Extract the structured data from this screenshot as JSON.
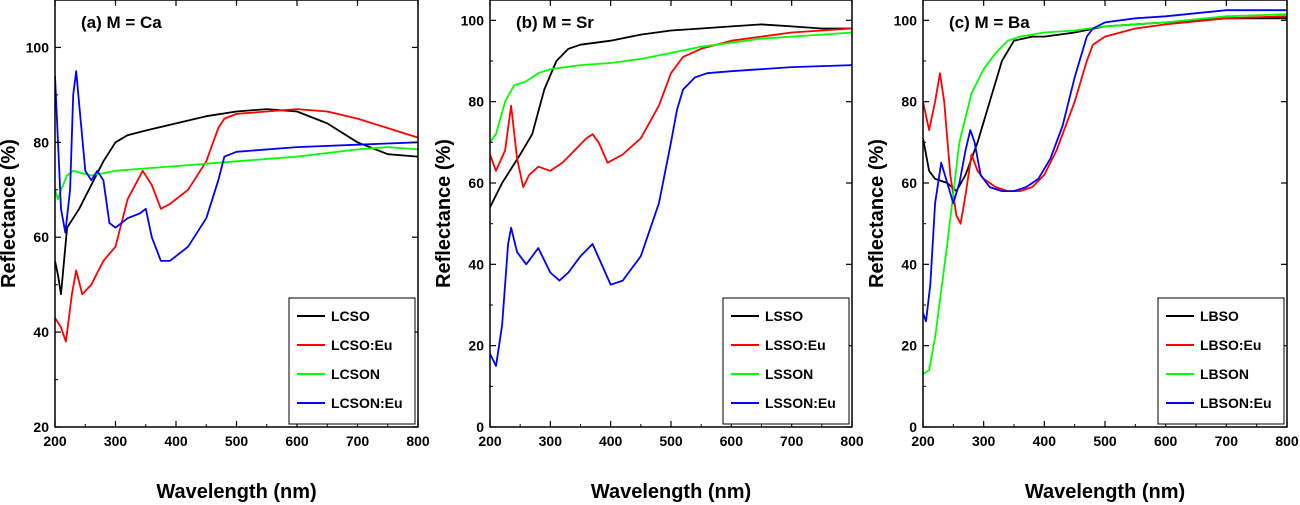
{
  "chart_data": [
    {
      "type": "line",
      "title": "(a) M = Ca",
      "xlabel": "Wavelength (nm)",
      "ylabel": "Reflectance (%)",
      "xlim": [
        200,
        800
      ],
      "ylim": [
        20,
        110
      ],
      "xticks": [
        200,
        300,
        400,
        500,
        600,
        700,
        800
      ],
      "yticks": [
        20,
        40,
        60,
        80,
        100
      ],
      "legend_position": "bottom-right",
      "series": [
        {
          "name": "LCSO",
          "color": "#000000",
          "x": [
            200,
            205,
            210,
            220,
            240,
            260,
            280,
            300,
            320,
            350,
            400,
            450,
            500,
            550,
            600,
            650,
            700,
            750,
            800
          ],
          "y": [
            55,
            52,
            48,
            62,
            66,
            71,
            76,
            80,
            81.5,
            82.5,
            84,
            85.5,
            86.5,
            87,
            86.5,
            84,
            80,
            77.5,
            77
          ]
        },
        {
          "name": "LCSO:Eu",
          "color": "#ff0000",
          "x": [
            200,
            210,
            218,
            228,
            235,
            245,
            260,
            280,
            300,
            320,
            345,
            360,
            375,
            390,
            420,
            450,
            470,
            480,
            500,
            550,
            600,
            650,
            700,
            750,
            800
          ],
          "y": [
            43,
            41,
            38,
            48,
            53,
            48,
            50,
            55,
            58,
            68,
            74,
            71,
            66,
            67,
            70,
            76,
            83,
            85,
            86,
            86.5,
            87,
            86.5,
            85,
            83,
            81
          ]
        },
        {
          "name": "LCSON",
          "color": "#00ff00",
          "x": [
            200,
            205,
            210,
            220,
            230,
            245,
            260,
            280,
            300,
            350,
            400,
            500,
            600,
            700,
            750,
            800
          ],
          "y": [
            70,
            68,
            70,
            73,
            74,
            73.5,
            73,
            73.5,
            74,
            74.5,
            75,
            76,
            77,
            78.5,
            79,
            78.5
          ]
        },
        {
          "name": "LCSON:Eu",
          "color": "#0000ff",
          "x": [
            200,
            205,
            210,
            217,
            225,
            230,
            235,
            240,
            250,
            260,
            270,
            280,
            290,
            300,
            320,
            340,
            350,
            360,
            375,
            390,
            420,
            450,
            470,
            480,
            500,
            600,
            700,
            800
          ],
          "y": [
            94,
            80,
            66,
            61,
            70,
            90,
            95,
            88,
            74,
            72,
            74,
            72,
            63,
            62,
            64,
            65,
            66,
            60,
            55,
            55,
            58,
            64,
            72,
            77,
            78,
            79,
            79.5,
            80
          ]
        }
      ]
    },
    {
      "type": "line",
      "title": "(b) M = Sr",
      "xlabel": "Wavelength (nm)",
      "ylabel": "Reflectance (%)",
      "xlim": [
        200,
        800
      ],
      "ylim": [
        0,
        105
      ],
      "xticks": [
        200,
        300,
        400,
        500,
        600,
        700,
        800
      ],
      "yticks": [
        0,
        20,
        40,
        60,
        80,
        100
      ],
      "legend_position": "bottom-right",
      "series": [
        {
          "name": "LSSO",
          "color": "#000000",
          "x": [
            200,
            220,
            250,
            270,
            290,
            310,
            330,
            350,
            400,
            450,
            500,
            550,
            600,
            650,
            700,
            750,
            800
          ],
          "y": [
            54,
            60,
            67,
            72,
            83,
            90,
            93,
            94,
            95,
            96.5,
            97.5,
            98,
            98.5,
            99,
            98.5,
            98,
            98
          ]
        },
        {
          "name": "LSSO:Eu",
          "color": "#ff0000",
          "x": [
            200,
            210,
            225,
            235,
            245,
            255,
            265,
            280,
            300,
            320,
            340,
            360,
            370,
            380,
            395,
            420,
            450,
            480,
            500,
            520,
            550,
            600,
            650,
            700,
            750,
            800
          ],
          "y": [
            67,
            63,
            68,
            79,
            66,
            59,
            62,
            64,
            63,
            65,
            68,
            71,
            72,
            70,
            65,
            67,
            71,
            79,
            87,
            91,
            93,
            95,
            96,
            97,
            97.5,
            98
          ]
        },
        {
          "name": "LSSON",
          "color": "#00ff00",
          "x": [
            200,
            210,
            225,
            240,
            260,
            280,
            300,
            350,
            400,
            450,
            500,
            550,
            600,
            650,
            700,
            750,
            800
          ],
          "y": [
            70,
            72,
            80,
            84,
            85,
            87,
            88,
            89,
            89.5,
            90.5,
            92,
            93.5,
            94.5,
            95.5,
            96,
            96.5,
            97
          ]
        },
        {
          "name": "LSSON:Eu",
          "color": "#0000ff",
          "x": [
            200,
            210,
            220,
            230,
            235,
            245,
            260,
            280,
            300,
            315,
            330,
            350,
            370,
            385,
            400,
            420,
            450,
            480,
            500,
            510,
            520,
            540,
            560,
            600,
            700,
            800
          ],
          "y": [
            18,
            15,
            25,
            45,
            49,
            43,
            40,
            44,
            38,
            36,
            38,
            42,
            45,
            40,
            35,
            36,
            42,
            55,
            70,
            78,
            83,
            86,
            87,
            87.5,
            88.5,
            89
          ]
        }
      ]
    },
    {
      "type": "line",
      "title": "(c) M = Ba",
      "xlabel": "Wavelength (nm)",
      "ylabel": "Reflectance (%)",
      "xlim": [
        200,
        800
      ],
      "ylim": [
        0,
        105
      ],
      "xticks": [
        200,
        300,
        400,
        500,
        600,
        700,
        800
      ],
      "yticks": [
        0,
        20,
        40,
        60,
        80,
        100
      ],
      "legend_position": "bottom-right",
      "series": [
        {
          "name": "LBSO",
          "color": "#000000",
          "x": [
            200,
            210,
            220,
            240,
            255,
            270,
            290,
            310,
            330,
            350,
            380,
            400,
            450,
            500,
            600,
            700,
            800
          ],
          "y": [
            71,
            63,
            61,
            60,
            58,
            62,
            70,
            80,
            90,
            95,
            96,
            96,
            97,
            98.5,
            99.5,
            100.5,
            100.5
          ]
        },
        {
          "name": "LBSO:Eu",
          "color": "#ff0000",
          "x": [
            200,
            210,
            220,
            228,
            235,
            245,
            255,
            262,
            270,
            280,
            290,
            300,
            320,
            340,
            360,
            380,
            400,
            420,
            450,
            470,
            480,
            500,
            550,
            600,
            700,
            800
          ],
          "y": [
            80,
            73,
            80,
            87,
            80,
            62,
            52,
            50,
            57,
            67,
            63,
            61,
            59,
            58,
            58,
            59,
            62,
            68,
            80,
            90,
            94,
            96,
            98,
            99,
            100.5,
            101
          ]
        },
        {
          "name": "LBSON",
          "color": "#00ff00",
          "x": [
            200,
            210,
            220,
            240,
            260,
            280,
            300,
            320,
            340,
            360,
            380,
            400,
            450,
            500,
            600,
            700,
            800
          ],
          "y": [
            13,
            14,
            22,
            45,
            70,
            82,
            88,
            92,
            95,
            96,
            96.5,
            97,
            97.5,
            98.5,
            99.5,
            101,
            101.5
          ]
        },
        {
          "name": "LBSON:Eu",
          "color": "#0000ff",
          "x": [
            200,
            205,
            212,
            220,
            230,
            240,
            250,
            260,
            270,
            278,
            285,
            295,
            310,
            330,
            350,
            370,
            390,
            410,
            430,
            450,
            470,
            480,
            500,
            550,
            600,
            700,
            800
          ],
          "y": [
            28,
            26,
            35,
            55,
            65,
            60,
            55,
            60,
            68,
            73,
            70,
            62,
            59,
            58,
            58,
            59,
            61,
            66,
            74,
            86,
            96,
            98,
            99.5,
            100.5,
            101,
            102.5,
            102.5
          ]
        }
      ]
    }
  ]
}
